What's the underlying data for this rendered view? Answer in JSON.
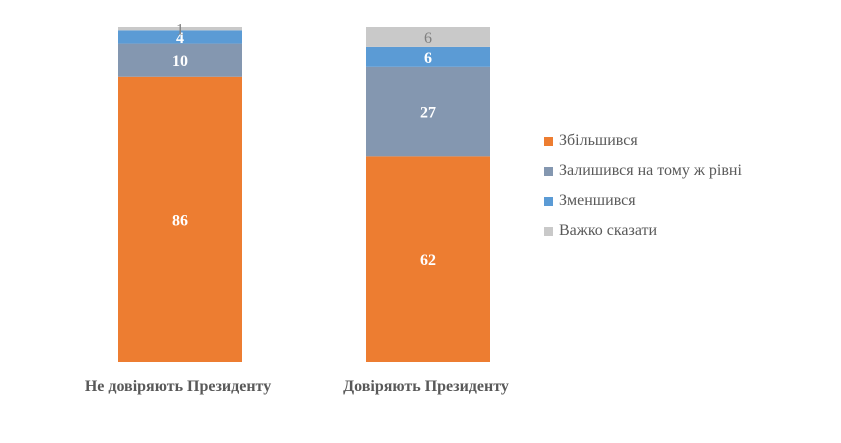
{
  "chart_data": {
    "type": "bar",
    "stacked": true,
    "categories": [
      "Не довіряють Президенту",
      "Довіряють Президенту"
    ],
    "series": [
      {
        "name": "Збільшився",
        "values": [
          86,
          62
        ],
        "color": "#ED7D31"
      },
      {
        "name": "Залишився на тому ж рівні",
        "values": [
          10,
          27
        ],
        "color": "#8497B0"
      },
      {
        "name": "Зменшився",
        "values": [
          4,
          6
        ],
        "color": "#5B9BD5"
      },
      {
        "name": "Важко сказати",
        "values": [
          1,
          6
        ],
        "color": "#C9C9C9"
      }
    ],
    "value_label_colors": [
      "#ffffff",
      "#ffffff",
      "#ffffff",
      "#7f7f7f"
    ],
    "ylim": [
      0,
      100
    ],
    "legend_position": "right",
    "grid": false
  }
}
